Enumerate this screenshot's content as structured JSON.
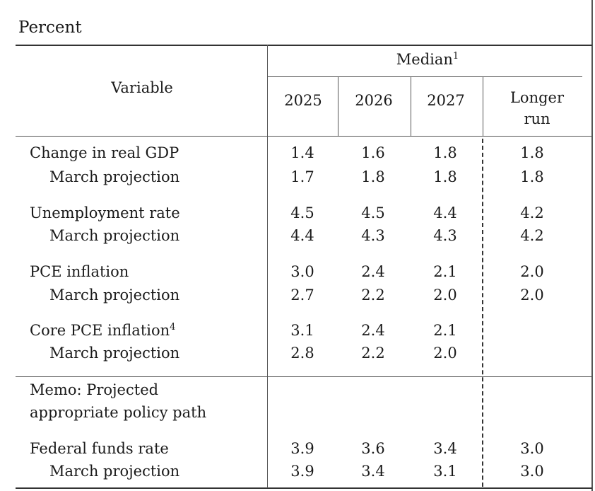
{
  "table": {
    "unit_label": "Percent",
    "header": {
      "variable": "Variable",
      "group": "Median",
      "group_note": "1",
      "years": [
        "2025",
        "2026",
        "2027"
      ],
      "longer_run_line1": "Longer",
      "longer_run_line2": "run"
    },
    "rows": [
      {
        "label": "Change in real GDP",
        "note": "",
        "values": [
          "1.4",
          "1.6",
          "1.8",
          "1.8"
        ]
      },
      {
        "label": "March projection",
        "note": "",
        "values": [
          "1.7",
          "1.8",
          "1.8",
          "1.8"
        ]
      },
      {
        "label": "Unemployment rate",
        "note": "",
        "values": [
          "4.5",
          "4.5",
          "4.4",
          "4.2"
        ]
      },
      {
        "label": "March projection",
        "note": "",
        "values": [
          "4.4",
          "4.3",
          "4.3",
          "4.2"
        ]
      },
      {
        "label": "PCE inflation",
        "note": "",
        "values": [
          "3.0",
          "2.4",
          "2.1",
          "2.0"
        ]
      },
      {
        "label": "March projection",
        "note": "",
        "values": [
          "2.7",
          "2.2",
          "2.0",
          "2.0"
        ]
      },
      {
        "label": "Core PCE inflation",
        "note": "4",
        "values": [
          "3.1",
          "2.4",
          "2.1",
          ""
        ]
      },
      {
        "label": "March projection",
        "note": "",
        "values": [
          "2.8",
          "2.2",
          "2.0",
          ""
        ]
      },
      {
        "label": "Federal funds rate",
        "note": "",
        "values": [
          "3.9",
          "3.6",
          "3.4",
          "3.0"
        ]
      },
      {
        "label": "March projection",
        "note": "",
        "values": [
          "3.9",
          "3.4",
          "3.1",
          "3.0"
        ]
      }
    ],
    "memo_line1": "Memo: Projected",
    "memo_line2": "appropriate policy path"
  }
}
